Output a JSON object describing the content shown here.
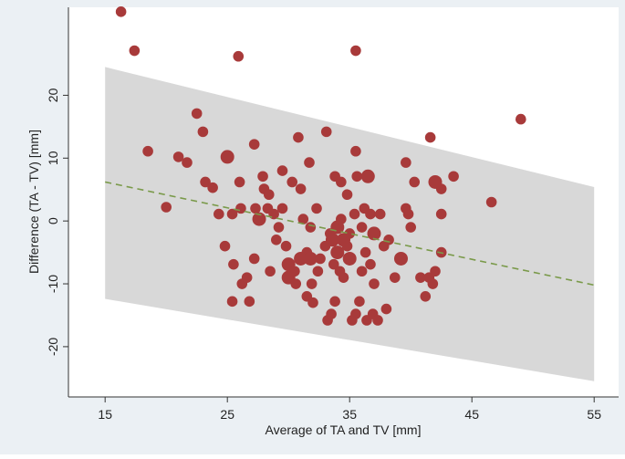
{
  "chart_data": {
    "type": "scatter",
    "title": "",
    "xlabel": "Average of TA and TV [mm]",
    "ylabel": "Difference (TA - TV) [mm]",
    "xlim": [
      12,
      57
    ],
    "ylim": [
      -28,
      34
    ],
    "xticks": [
      15,
      25,
      35,
      45,
      55
    ],
    "yticks": [
      -20,
      -10,
      0,
      10,
      20
    ],
    "xtick_labels": [
      "15",
      "25",
      "35",
      "45",
      "55"
    ],
    "ytick_labels": [
      "-20",
      "-10",
      "0",
      "10",
      "20"
    ],
    "grid": false,
    "regression_line": {
      "x": [
        15,
        55
      ],
      "y": [
        6.2,
        -10.2
      ],
      "color": "#7a9a4a",
      "style": "dashed"
    },
    "limits_band": {
      "x": [
        15,
        55
      ],
      "upper": [
        24.5,
        5.4
      ],
      "lower": [
        -12.4,
        -25.5
      ],
      "color": "#d8d8d8"
    },
    "colors": {
      "points": "#a83a3a",
      "background": "#ebf0f4",
      "plot_area": "#ffffff"
    },
    "points": [
      {
        "x": 16.3,
        "y": 33.3,
        "s": 1
      },
      {
        "x": 17.4,
        "y": 27.1,
        "s": 1
      },
      {
        "x": 25.9,
        "y": 26.2,
        "s": 1
      },
      {
        "x": 35.5,
        "y": 27.1,
        "s": 1
      },
      {
        "x": 49.0,
        "y": 16.2,
        "s": 1
      },
      {
        "x": 41.6,
        "y": 13.3,
        "s": 1
      },
      {
        "x": 18.5,
        "y": 11.1,
        "s": 1
      },
      {
        "x": 20.0,
        "y": 2.2,
        "s": 1
      },
      {
        "x": 21.0,
        "y": 10.2,
        "s": 1
      },
      {
        "x": 21.7,
        "y": 9.3,
        "s": 1
      },
      {
        "x": 22.5,
        "y": 17.1,
        "s": 1
      },
      {
        "x": 23.0,
        "y": 14.2,
        "s": 1
      },
      {
        "x": 23.2,
        "y": 6.2,
        "s": 1
      },
      {
        "x": 23.8,
        "y": 5.3,
        "s": 1
      },
      {
        "x": 24.3,
        "y": 1.1,
        "s": 1
      },
      {
        "x": 24.8,
        "y": -4.0,
        "s": 1
      },
      {
        "x": 25.0,
        "y": 10.2,
        "s": 2
      },
      {
        "x": 25.4,
        "y": 1.1,
        "s": 1
      },
      {
        "x": 25.5,
        "y": -6.9,
        "s": 1
      },
      {
        "x": 25.4,
        "y": -12.8,
        "s": 1
      },
      {
        "x": 26.0,
        "y": 6.2,
        "s": 1
      },
      {
        "x": 26.1,
        "y": 2.0,
        "s": 1
      },
      {
        "x": 26.2,
        "y": -10.0,
        "s": 1
      },
      {
        "x": 26.6,
        "y": -9.0,
        "s": 1
      },
      {
        "x": 26.8,
        "y": -12.8,
        "s": 1
      },
      {
        "x": 27.2,
        "y": 12.2,
        "s": 1
      },
      {
        "x": 27.3,
        "y": 2.0,
        "s": 1
      },
      {
        "x": 27.2,
        "y": -6.0,
        "s": 1
      },
      {
        "x": 27.6,
        "y": 0.3,
        "s": 2
      },
      {
        "x": 27.9,
        "y": 7.1,
        "s": 1
      },
      {
        "x": 28.0,
        "y": 5.1,
        "s": 1
      },
      {
        "x": 28.3,
        "y": 2.0,
        "s": 1
      },
      {
        "x": 28.4,
        "y": 4.2,
        "s": 1
      },
      {
        "x": 28.5,
        "y": -8.0,
        "s": 1
      },
      {
        "x": 28.8,
        "y": 1.1,
        "s": 1
      },
      {
        "x": 29.0,
        "y": -3.0,
        "s": 1
      },
      {
        "x": 29.2,
        "y": -1.0,
        "s": 1
      },
      {
        "x": 29.5,
        "y": 2.0,
        "s": 1
      },
      {
        "x": 29.5,
        "y": 8.0,
        "s": 1
      },
      {
        "x": 29.8,
        "y": -4.0,
        "s": 1
      },
      {
        "x": 30.0,
        "y": -6.9,
        "s": 2
      },
      {
        "x": 30.0,
        "y": -9.0,
        "s": 2
      },
      {
        "x": 30.3,
        "y": 6.2,
        "s": 1
      },
      {
        "x": 30.5,
        "y": -8.0,
        "s": 1
      },
      {
        "x": 30.6,
        "y": -10.0,
        "s": 1
      },
      {
        "x": 30.8,
        "y": 13.3,
        "s": 1
      },
      {
        "x": 31.0,
        "y": 5.1,
        "s": 1
      },
      {
        "x": 31.0,
        "y": -6.0,
        "s": 2
      },
      {
        "x": 31.2,
        "y": 0.3,
        "s": 1
      },
      {
        "x": 31.5,
        "y": -5.0,
        "s": 1
      },
      {
        "x": 31.5,
        "y": -12.0,
        "s": 1
      },
      {
        "x": 31.7,
        "y": 9.3,
        "s": 1
      },
      {
        "x": 31.8,
        "y": -6.0,
        "s": 2
      },
      {
        "x": 31.8,
        "y": -1.0,
        "s": 1
      },
      {
        "x": 31.9,
        "y": -10.0,
        "s": 1
      },
      {
        "x": 32.0,
        "y": -13.0,
        "s": 1
      },
      {
        "x": 32.3,
        "y": 2.0,
        "s": 1
      },
      {
        "x": 32.4,
        "y": -8.0,
        "s": 1
      },
      {
        "x": 32.6,
        "y": -6.0,
        "s": 1
      },
      {
        "x": 33.0,
        "y": -4.0,
        "s": 1
      },
      {
        "x": 33.1,
        "y": 14.2,
        "s": 1
      },
      {
        "x": 33.2,
        "y": -15.8,
        "s": 1
      },
      {
        "x": 33.4,
        "y": -2.0,
        "s": 1
      },
      {
        "x": 33.5,
        "y": -14.8,
        "s": 1
      },
      {
        "x": 33.6,
        "y": -3.0,
        "s": 2
      },
      {
        "x": 33.7,
        "y": -6.9,
        "s": 1
      },
      {
        "x": 33.8,
        "y": 7.1,
        "s": 1
      },
      {
        "x": 33.8,
        "y": -12.8,
        "s": 1
      },
      {
        "x": 34.0,
        "y": -1.0,
        "s": 2
      },
      {
        "x": 34.0,
        "y": -5.0,
        "s": 2
      },
      {
        "x": 34.2,
        "y": -8.0,
        "s": 1
      },
      {
        "x": 34.3,
        "y": 6.2,
        "s": 1
      },
      {
        "x": 34.3,
        "y": 0.3,
        "s": 1
      },
      {
        "x": 34.5,
        "y": -3.0,
        "s": 2
      },
      {
        "x": 34.5,
        "y": -9.0,
        "s": 1
      },
      {
        "x": 34.8,
        "y": 4.2,
        "s": 1
      },
      {
        "x": 34.8,
        "y": -4.0,
        "s": 1
      },
      {
        "x": 35.0,
        "y": -2.0,
        "s": 1
      },
      {
        "x": 35.0,
        "y": -6.0,
        "s": 2
      },
      {
        "x": 35.2,
        "y": -15.8,
        "s": 1
      },
      {
        "x": 35.4,
        "y": 1.1,
        "s": 1
      },
      {
        "x": 35.5,
        "y": 11.1,
        "s": 1
      },
      {
        "x": 35.5,
        "y": -14.8,
        "s": 1
      },
      {
        "x": 35.6,
        "y": 7.1,
        "s": 1
      },
      {
        "x": 35.8,
        "y": -12.8,
        "s": 1
      },
      {
        "x": 36.0,
        "y": -8.0,
        "s": 1
      },
      {
        "x": 36.0,
        "y": -1.0,
        "s": 1
      },
      {
        "x": 36.2,
        "y": 2.0,
        "s": 1
      },
      {
        "x": 36.3,
        "y": -5.0,
        "s": 1
      },
      {
        "x": 36.4,
        "y": -15.8,
        "s": 1
      },
      {
        "x": 36.5,
        "y": 7.1,
        "s": 2
      },
      {
        "x": 36.7,
        "y": 1.1,
        "s": 1
      },
      {
        "x": 36.7,
        "y": -6.9,
        "s": 1
      },
      {
        "x": 36.9,
        "y": -14.8,
        "s": 1
      },
      {
        "x": 37.0,
        "y": -2.0,
        "s": 2
      },
      {
        "x": 37.0,
        "y": -10.0,
        "s": 1
      },
      {
        "x": 37.3,
        "y": -15.8,
        "s": 1
      },
      {
        "x": 37.5,
        "y": 1.1,
        "s": 1
      },
      {
        "x": 37.8,
        "y": -4.0,
        "s": 1
      },
      {
        "x": 38.0,
        "y": -14.0,
        "s": 1
      },
      {
        "x": 38.2,
        "y": -3.0,
        "s": 1
      },
      {
        "x": 38.7,
        "y": -9.0,
        "s": 1
      },
      {
        "x": 39.2,
        "y": -6.0,
        "s": 2
      },
      {
        "x": 39.6,
        "y": 2.0,
        "s": 1
      },
      {
        "x": 39.6,
        "y": 9.3,
        "s": 1
      },
      {
        "x": 39.8,
        "y": 1.1,
        "s": 1
      },
      {
        "x": 40.0,
        "y": -1.0,
        "s": 1
      },
      {
        "x": 40.3,
        "y": 6.2,
        "s": 1
      },
      {
        "x": 40.8,
        "y": -9.0,
        "s": 1
      },
      {
        "x": 41.2,
        "y": -12.0,
        "s": 1
      },
      {
        "x": 41.5,
        "y": -9.0,
        "s": 1
      },
      {
        "x": 41.8,
        "y": -10.0,
        "s": 1
      },
      {
        "x": 42.0,
        "y": -8.0,
        "s": 1
      },
      {
        "x": 42.0,
        "y": 6.2,
        "s": 2
      },
      {
        "x": 42.5,
        "y": 5.1,
        "s": 1
      },
      {
        "x": 42.5,
        "y": 1.1,
        "s": 1
      },
      {
        "x": 42.5,
        "y": -5.0,
        "s": 1
      },
      {
        "x": 43.5,
        "y": 7.1,
        "s": 1
      },
      {
        "x": 46.6,
        "y": 3.0,
        "s": 1
      }
    ]
  }
}
